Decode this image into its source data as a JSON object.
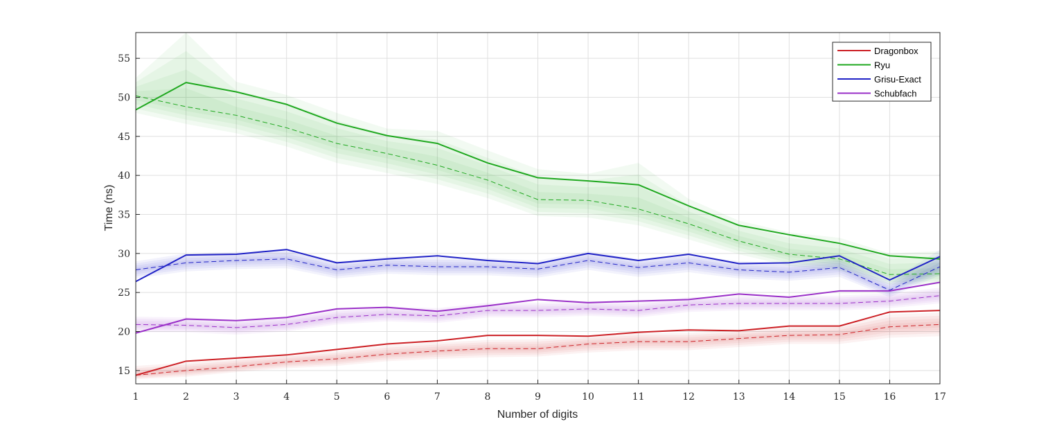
{
  "chart_data": {
    "type": "line",
    "title": "",
    "xlabel": "Number of digits",
    "ylabel": "Time (ns)",
    "xlim": [
      1,
      17
    ],
    "ylim": [
      13.3,
      58.3
    ],
    "x_ticks": [
      1,
      2,
      3,
      4,
      5,
      6,
      7,
      8,
      9,
      10,
      11,
      12,
      13,
      14,
      15,
      16,
      17
    ],
    "y_ticks": [
      15,
      20,
      25,
      30,
      35,
      40,
      45,
      50,
      55
    ],
    "grid": true,
    "legend_position": "top-right",
    "x": [
      1,
      2,
      3,
      4,
      5,
      6,
      7,
      8,
      9,
      10,
      11,
      12,
      13,
      14,
      15,
      16,
      17
    ],
    "series": [
      {
        "name": "Dragonbox",
        "color": "#cc1f24",
        "mean": [
          14.4,
          16.2,
          16.6,
          17.0,
          17.7,
          18.4,
          18.8,
          19.5,
          19.5,
          19.4,
          19.9,
          20.2,
          20.1,
          20.7,
          20.7,
          22.5,
          22.7
        ],
        "median": [
          14.4,
          15.0,
          15.5,
          16.1,
          16.5,
          17.1,
          17.5,
          17.8,
          17.8,
          18.4,
          18.7,
          18.7,
          19.1,
          19.5,
          19.6,
          20.6,
          20.9
        ],
        "band_lower": [
          13.9,
          14.2,
          14.8,
          15.3,
          15.6,
          16.2,
          16.5,
          16.7,
          16.8,
          17.3,
          17.6,
          17.6,
          18.0,
          18.4,
          18.4,
          19.2,
          19.4
        ],
        "band_upper": [
          15.6,
          16.0,
          16.5,
          17.0,
          17.5,
          18.2,
          18.6,
          18.9,
          19.0,
          19.4,
          19.8,
          19.8,
          20.2,
          20.6,
          20.8,
          22.2,
          22.4
        ]
      },
      {
        "name": "Ryu",
        "color": "#1fa81f",
        "mean": [
          48.4,
          51.9,
          50.7,
          49.1,
          46.7,
          45.1,
          44.1,
          41.6,
          39.7,
          39.3,
          38.8,
          36.1,
          33.6,
          32.4,
          31.3,
          29.7,
          29.3
        ],
        "median": [
          50.2,
          48.8,
          47.7,
          46.1,
          44.1,
          42.8,
          41.3,
          39.4,
          36.9,
          36.8,
          35.7,
          33.8,
          31.6,
          29.9,
          29.3,
          27.3,
          27.4
        ],
        "band_lower": [
          48.0,
          46.6,
          45.4,
          43.7,
          41.6,
          40.3,
          38.9,
          37.1,
          34.8,
          34.6,
          33.6,
          31.8,
          29.9,
          28.4,
          27.8,
          26.0,
          26.1
        ],
        "band_upper": [
          52.5,
          58.3,
          52.0,
          50.3,
          48.0,
          46.0,
          45.7,
          43.2,
          40.8,
          40.2,
          41.6,
          37.0,
          34.2,
          32.7,
          32.0,
          30.0,
          30.3
        ]
      },
      {
        "name": "Grisu-Exact",
        "color": "#1f21c6",
        "mean": [
          26.4,
          29.8,
          29.9,
          30.5,
          28.8,
          29.3,
          29.7,
          29.1,
          28.7,
          30.0,
          29.1,
          29.9,
          28.7,
          28.8,
          29.7,
          26.6,
          29.6
        ],
        "median": [
          27.9,
          28.8,
          29.1,
          29.3,
          27.9,
          28.5,
          28.3,
          28.3,
          28.0,
          29.1,
          28.2,
          28.8,
          27.9,
          27.6,
          28.2,
          25.3,
          28.3
        ],
        "band_lower": [
          26.8,
          27.7,
          28.0,
          28.1,
          26.8,
          27.4,
          27.2,
          27.2,
          26.9,
          27.9,
          27.0,
          27.6,
          26.8,
          26.5,
          27.0,
          24.4,
          27.2
        ],
        "band_upper": [
          29.0,
          30.0,
          30.2,
          30.6,
          29.0,
          29.6,
          29.5,
          29.4,
          29.1,
          30.3,
          29.3,
          29.9,
          29.0,
          28.8,
          29.4,
          26.4,
          30.5
        ]
      },
      {
        "name": "Schubfach",
        "color": "#9a2fc8",
        "mean": [
          19.8,
          21.6,
          21.4,
          21.8,
          22.9,
          23.1,
          22.6,
          23.3,
          24.1,
          23.7,
          23.9,
          24.1,
          24.8,
          24.4,
          25.2,
          25.2,
          26.3
        ],
        "median": [
          20.9,
          20.8,
          20.5,
          20.9,
          21.8,
          22.2,
          22.0,
          22.7,
          22.7,
          22.9,
          22.7,
          23.4,
          23.6,
          23.6,
          23.6,
          23.9,
          24.6
        ],
        "band_lower": [
          19.9,
          19.9,
          19.6,
          20.0,
          20.9,
          21.3,
          21.1,
          21.8,
          21.8,
          22.0,
          21.8,
          22.5,
          22.7,
          22.7,
          22.7,
          23.0,
          23.6
        ],
        "band_upper": [
          21.9,
          21.8,
          21.5,
          21.9,
          22.8,
          23.2,
          23.0,
          23.7,
          23.7,
          23.9,
          23.7,
          24.4,
          24.6,
          24.6,
          24.6,
          24.9,
          25.6
        ]
      }
    ]
  }
}
